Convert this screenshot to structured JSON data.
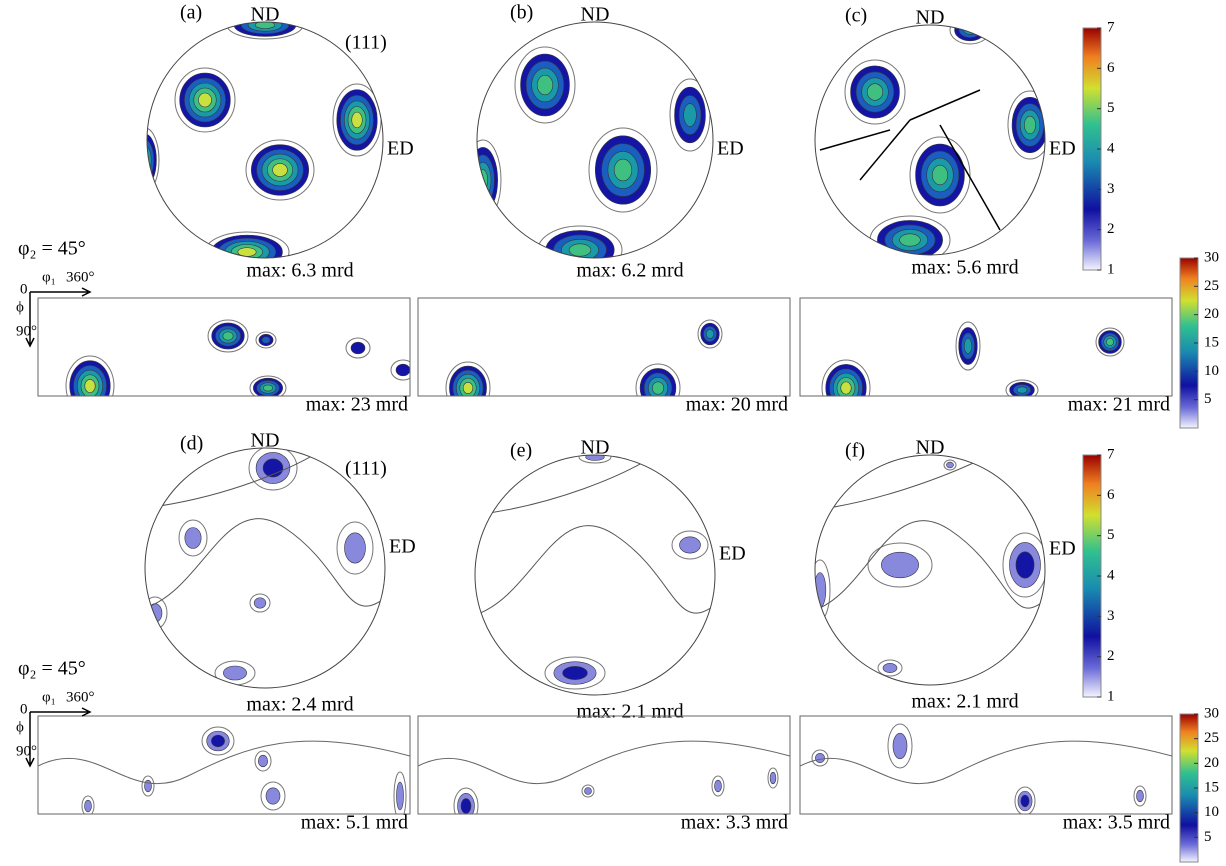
{
  "pole_figures": [
    {
      "label": "(a)",
      "nd": "ND",
      "ed": "ED",
      "plane": "(111)",
      "max": "max: 6.3 mrd"
    },
    {
      "label": "(b)",
      "nd": "ND",
      "ed": "ED",
      "max": "max: 6.2 mrd"
    },
    {
      "label": "(c)",
      "nd": "ND",
      "ed": "ED",
      "max": "max: 5.6 mrd"
    },
    {
      "label": "(d)",
      "nd": "ND",
      "ed": "ED",
      "plane": "(111)",
      "max": "max: 2.4 mrd"
    },
    {
      "label": "(e)",
      "nd": "ND",
      "ed": "ED",
      "max": "max: 2.1 mrd"
    },
    {
      "label": "(f)",
      "nd": "ND",
      "ed": "ED",
      "max": "max: 2.1 mrd"
    }
  ],
  "odf_sections": [
    {
      "max": "max: 23 mrd"
    },
    {
      "max": "max: 20 mrd"
    },
    {
      "max": "max: 21 mrd"
    },
    {
      "max": "max: 5.1 mrd"
    },
    {
      "max": "max: 3.3 mrd"
    },
    {
      "max": "max: 3.5 mrd"
    }
  ],
  "odf_axes": [
    {
      "section": "φ₂ = 45°",
      "origin": "0",
      "phi1": "φ₁",
      "phi1_end": "360°",
      "Phi": "ϕ",
      "Phi_end": "90°"
    },
    {
      "section": "φ₂ = 45°",
      "origin": "0",
      "phi1": "φ₁",
      "phi1_end": "360°",
      "Phi": "ϕ",
      "Phi_end": "90°"
    }
  ],
  "colorbars": [
    {
      "lim": [
        1,
        7
      ],
      "ticks": [
        1,
        2,
        3,
        4,
        5,
        6,
        7
      ]
    },
    {
      "lim": [
        0,
        30
      ],
      "ticks": [
        5,
        10,
        15,
        20,
        25,
        30
      ]
    },
    {
      "lim": [
        1,
        7
      ],
      "ticks": [
        1,
        2,
        3,
        4,
        5,
        6,
        7
      ]
    },
    {
      "lim": [
        0,
        30
      ],
      "ticks": [
        5,
        10,
        15,
        20,
        25,
        30
      ]
    }
  ]
}
